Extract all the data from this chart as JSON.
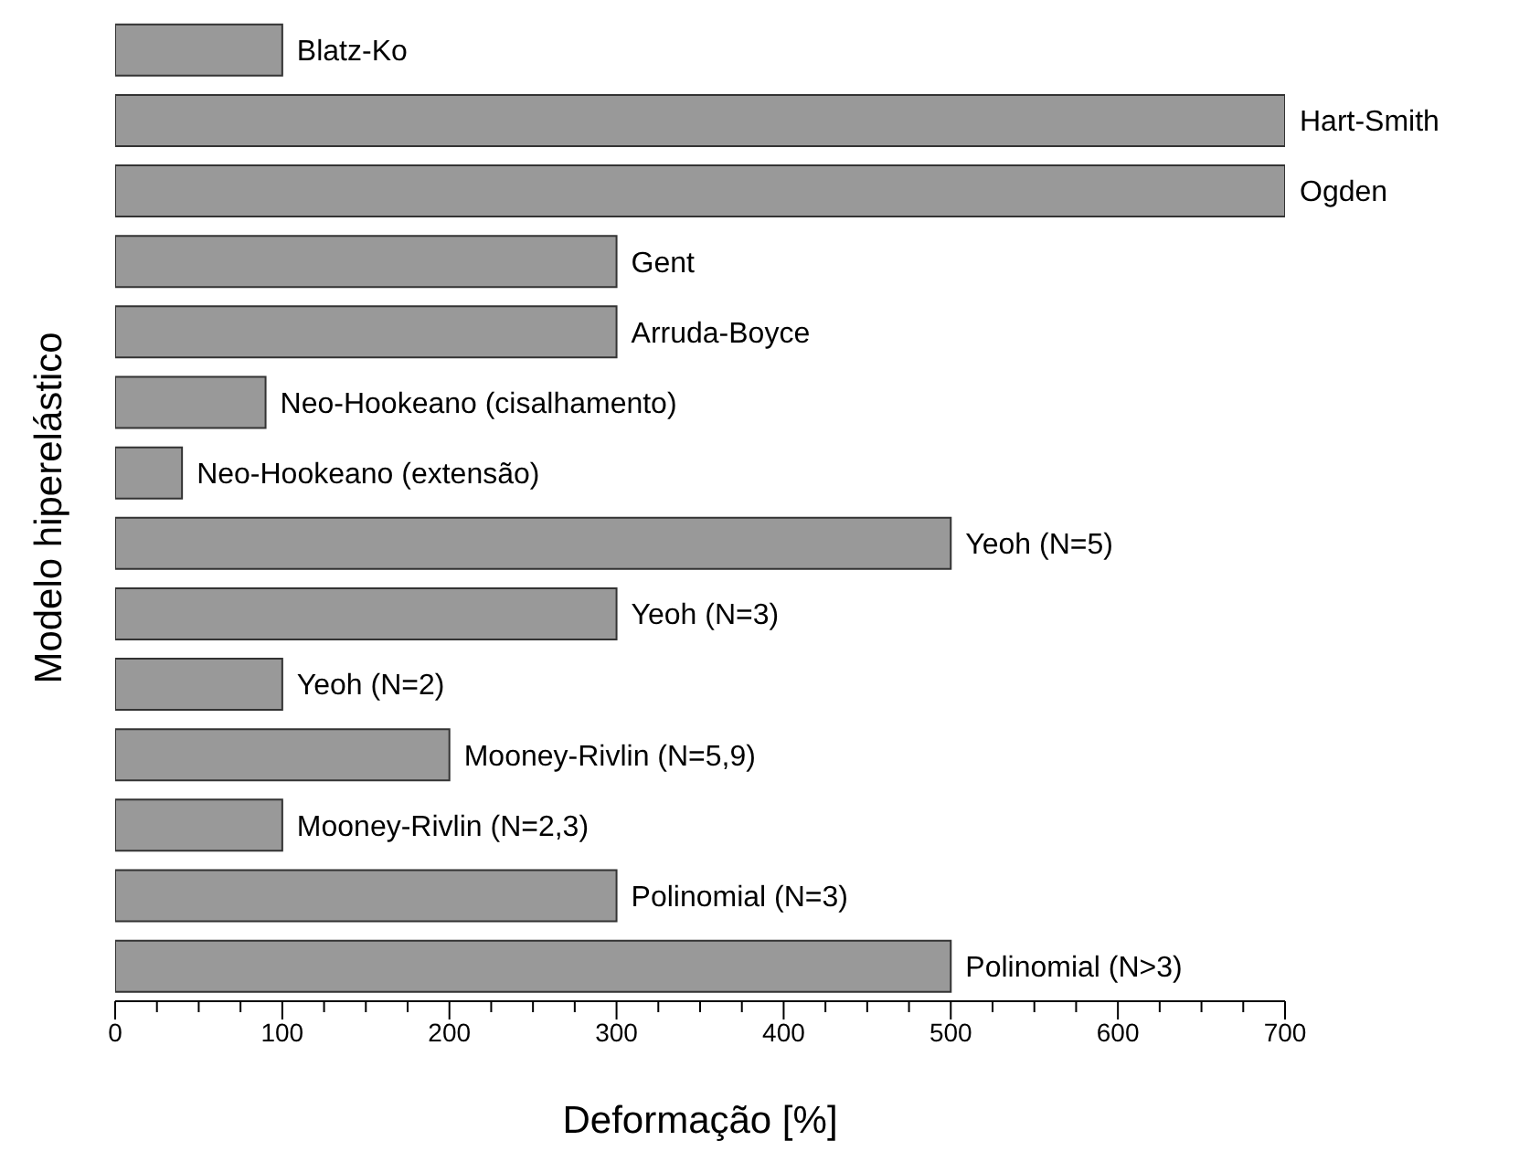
{
  "chart_data": {
    "type": "bar",
    "orientation": "horizontal",
    "xlabel": "Deformação [%]",
    "ylabel": "Modelo hiperelástico",
    "categories": [
      "Blatz-Ko",
      "Hart-Smith",
      "Ogden",
      "Gent",
      "Arruda-Boyce",
      "Neo-Hookeano (cisalhamento)",
      "Neo-Hookeano (extensão)",
      "Yeoh (N=5)",
      "Yeoh (N=3)",
      "Yeoh (N=2)",
      "Mooney-Rivlin (N=5,9)",
      "Mooney-Rivlin (N=2,3)",
      "Polinomial (N=3)",
      "Polinomial (N>3)"
    ],
    "values": [
      100,
      700,
      700,
      300,
      300,
      90,
      40,
      500,
      300,
      100,
      200,
      100,
      300,
      500
    ],
    "color": "#999999",
    "xlim": [
      0,
      700
    ],
    "xticks": [
      0,
      {
        "value": 25,
        "label": null
      },
      {
        "value": 50,
        "label": null
      },
      {
        "value": 75,
        "label": null
      },
      100,
      {
        "value": 125,
        "label": null
      },
      {
        "value": 150,
        "label": null
      },
      {
        "value": 175,
        "label": null
      },
      200,
      {
        "value": 225,
        "label": null
      },
      {
        "value": 250,
        "label": null
      },
      {
        "value": 275,
        "label": null
      },
      300,
      {
        "value": 325,
        "label": null
      },
      {
        "value": 350,
        "label": null
      },
      {
        "value": 375,
        "label": null
      },
      400,
      {
        "value": 425,
        "label": null
      },
      {
        "value": 450,
        "label": null
      },
      {
        "value": 475,
        "label": null
      },
      500,
      {
        "value": 525,
        "label": null
      },
      {
        "value": 550,
        "label": null
      },
      {
        "value": 575,
        "label": null
      },
      600,
      {
        "value": 625,
        "label": null
      },
      {
        "value": 650,
        "label": null
      },
      {
        "value": 675,
        "label": null
      },
      700
    ],
    "tick_labels": "x",
    "grid": false,
    "legend": false
  }
}
